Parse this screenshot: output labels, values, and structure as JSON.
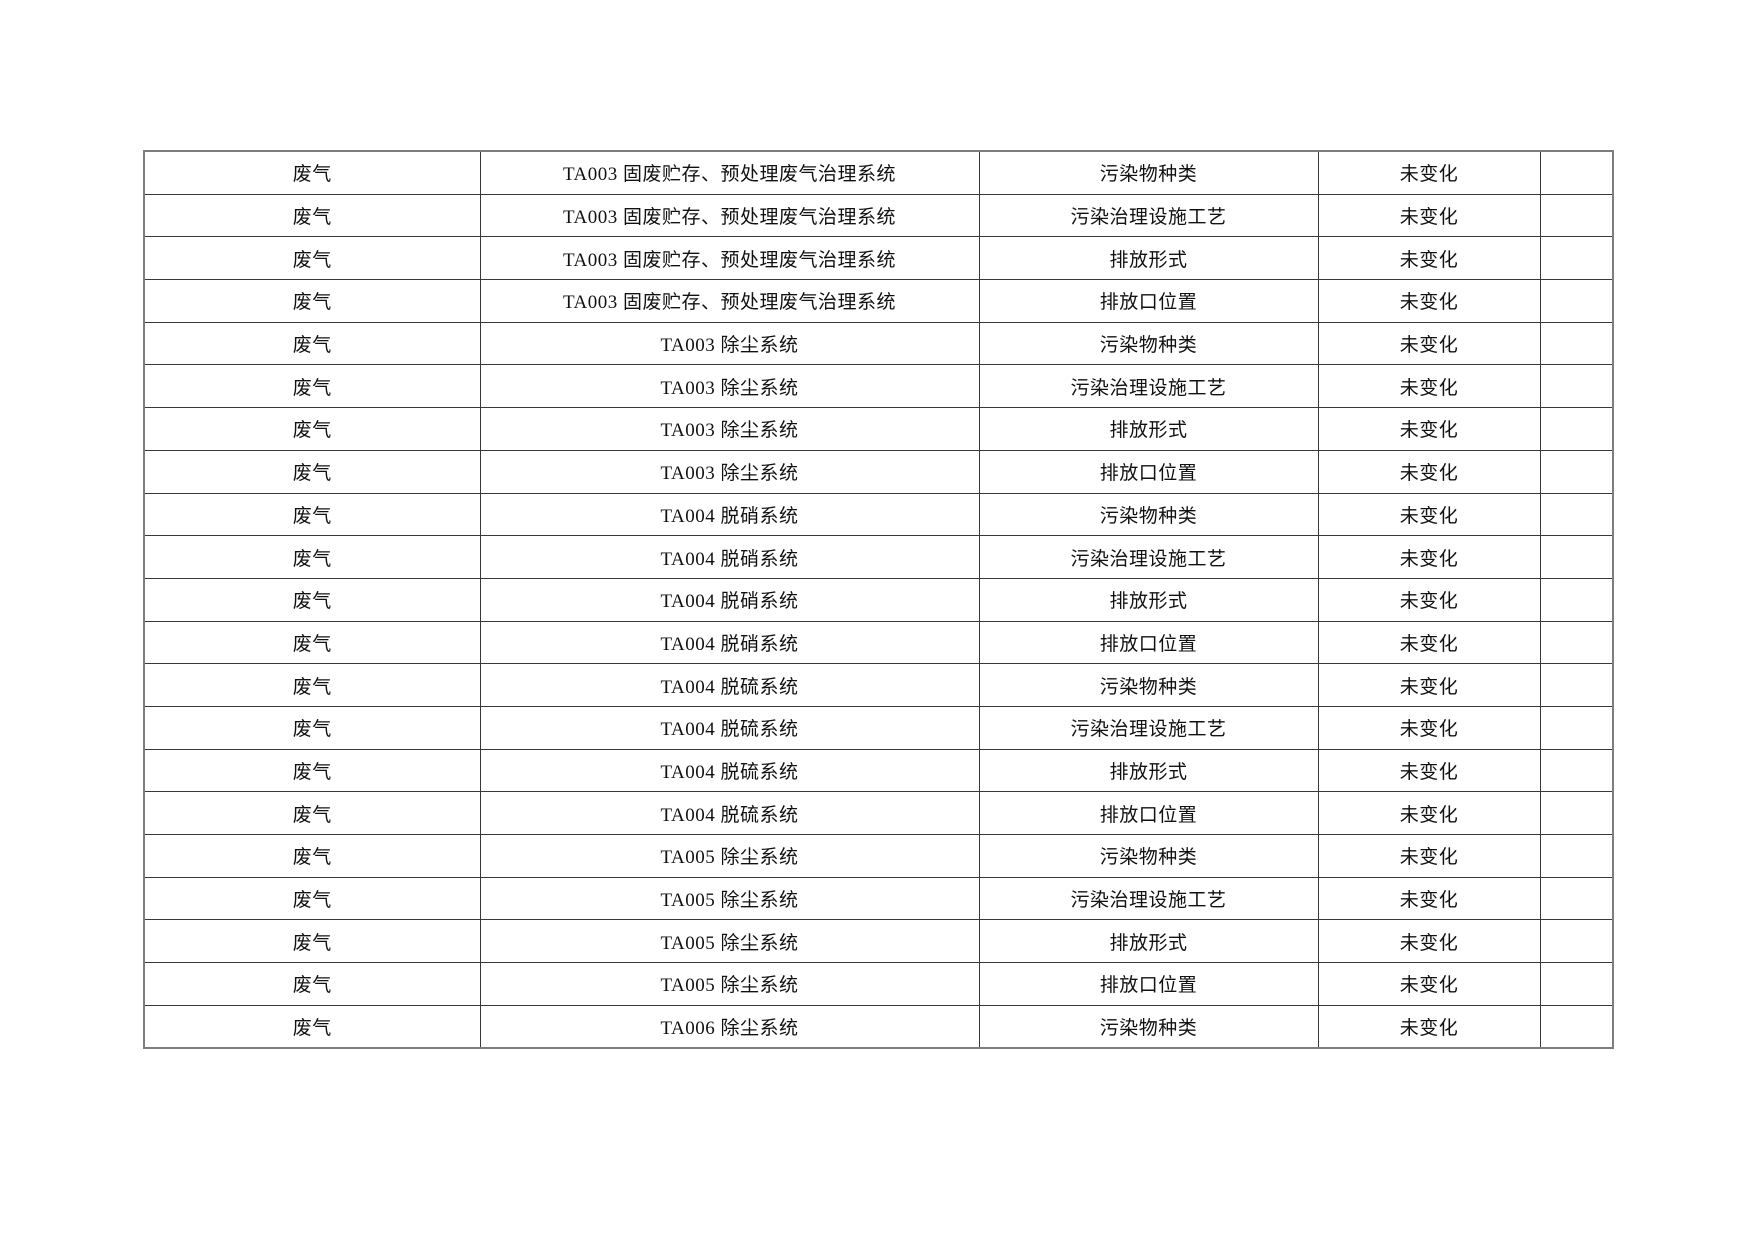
{
  "page": {
    "background_color": "#ffffff",
    "text_color": "#111111",
    "table_border_color": "#3a3a3a"
  },
  "table": {
    "fields": [
      "category",
      "facility",
      "item",
      "status",
      "remark"
    ],
    "rows": [
      {
        "category": "废气",
        "facility": "TA003 固废贮存、预处理废气治理系统",
        "item": "污染物种类",
        "status": "未变化",
        "remark": ""
      },
      {
        "category": "废气",
        "facility": "TA003 固废贮存、预处理废气治理系统",
        "item": "污染治理设施工艺",
        "status": "未变化",
        "remark": ""
      },
      {
        "category": "废气",
        "facility": "TA003 固废贮存、预处理废气治理系统",
        "item": "排放形式",
        "status": "未变化",
        "remark": ""
      },
      {
        "category": "废气",
        "facility": "TA003 固废贮存、预处理废气治理系统",
        "item": "排放口位置",
        "status": "未变化",
        "remark": ""
      },
      {
        "category": "废气",
        "facility": "TA003 除尘系统",
        "item": "污染物种类",
        "status": "未变化",
        "remark": ""
      },
      {
        "category": "废气",
        "facility": "TA003 除尘系统",
        "item": "污染治理设施工艺",
        "status": "未变化",
        "remark": ""
      },
      {
        "category": "废气",
        "facility": "TA003 除尘系统",
        "item": "排放形式",
        "status": "未变化",
        "remark": ""
      },
      {
        "category": "废气",
        "facility": "TA003 除尘系统",
        "item": "排放口位置",
        "status": "未变化",
        "remark": ""
      },
      {
        "category": "废气",
        "facility": "TA004 脱硝系统",
        "item": "污染物种类",
        "status": "未变化",
        "remark": ""
      },
      {
        "category": "废气",
        "facility": "TA004 脱硝系统",
        "item": "污染治理设施工艺",
        "status": "未变化",
        "remark": ""
      },
      {
        "category": "废气",
        "facility": "TA004 脱硝系统",
        "item": "排放形式",
        "status": "未变化",
        "remark": ""
      },
      {
        "category": "废气",
        "facility": "TA004 脱硝系统",
        "item": "排放口位置",
        "status": "未变化",
        "remark": ""
      },
      {
        "category": "废气",
        "facility": "TA004 脱硫系统",
        "item": "污染物种类",
        "status": "未变化",
        "remark": ""
      },
      {
        "category": "废气",
        "facility": "TA004 脱硫系统",
        "item": "污染治理设施工艺",
        "status": "未变化",
        "remark": ""
      },
      {
        "category": "废气",
        "facility": "TA004 脱硫系统",
        "item": "排放形式",
        "status": "未变化",
        "remark": ""
      },
      {
        "category": "废气",
        "facility": "TA004 脱硫系统",
        "item": "排放口位置",
        "status": "未变化",
        "remark": ""
      },
      {
        "category": "废气",
        "facility": "TA005 除尘系统",
        "item": "污染物种类",
        "status": "未变化",
        "remark": ""
      },
      {
        "category": "废气",
        "facility": "TA005 除尘系统",
        "item": "污染治理设施工艺",
        "status": "未变化",
        "remark": ""
      },
      {
        "category": "废气",
        "facility": "TA005 除尘系统",
        "item": "排放形式",
        "status": "未变化",
        "remark": ""
      },
      {
        "category": "废气",
        "facility": "TA005 除尘系统",
        "item": "排放口位置",
        "status": "未变化",
        "remark": ""
      },
      {
        "category": "废气",
        "facility": "TA006 除尘系统",
        "item": "污染物种类",
        "status": "未变化",
        "remark": ""
      }
    ]
  }
}
